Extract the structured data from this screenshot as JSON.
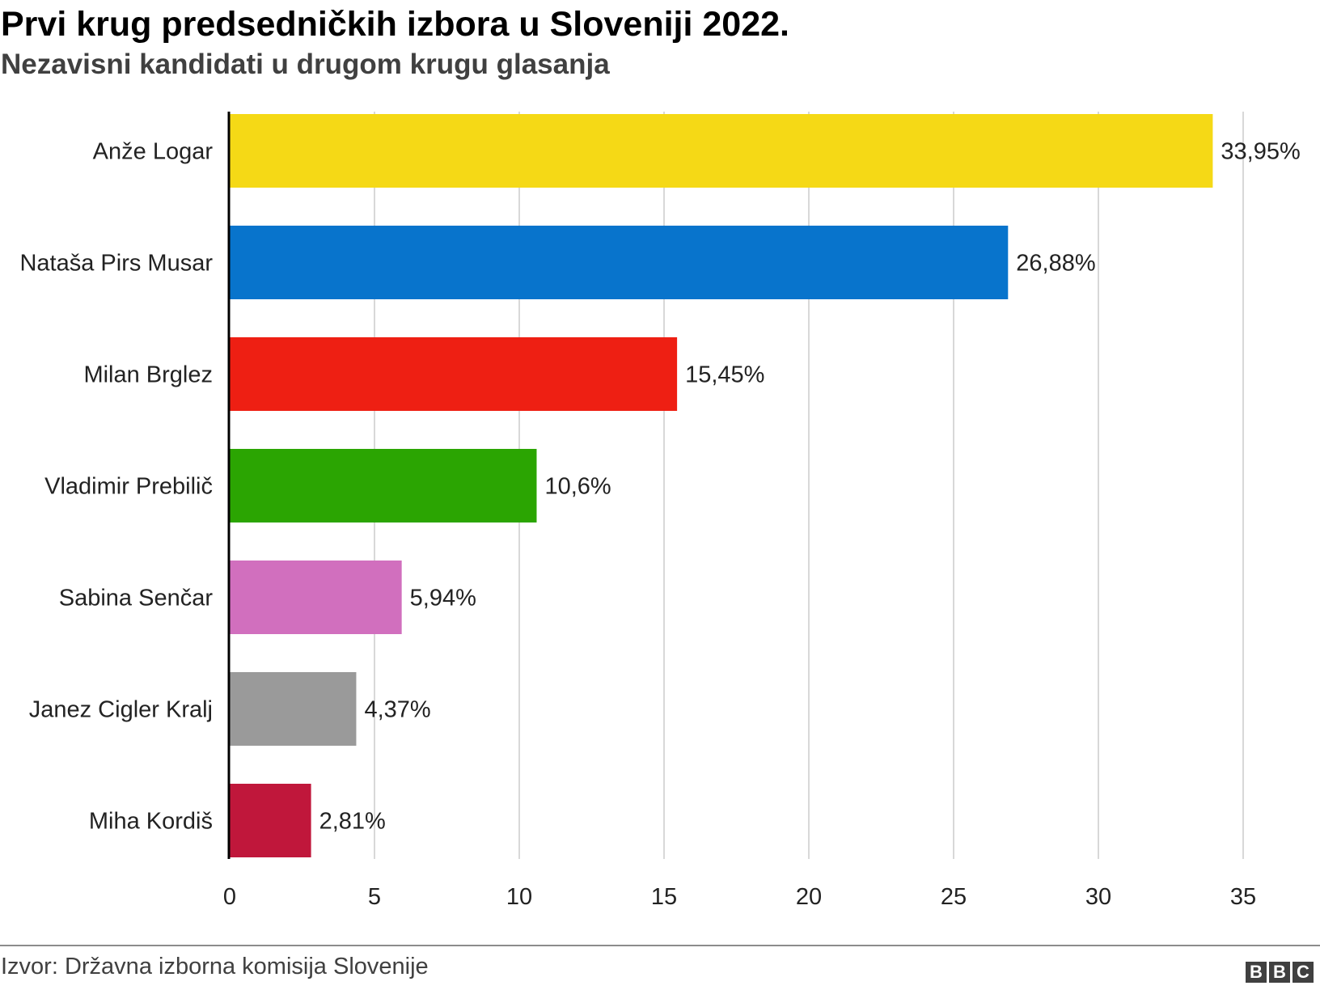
{
  "header": {
    "title": "Prvi krug predsedničkih izbora u Sloveniji 2022.",
    "subtitle": "Nezavisni kandidati u drugom krugu glasanja"
  },
  "footer": {
    "source": "Izvor: Državna izborna komisija Slovenije",
    "logo_letters": [
      "B",
      "B",
      "C"
    ]
  },
  "chart_data": {
    "type": "bar",
    "orientation": "horizontal",
    "title": "Prvi krug predsedničkih izbora u Sloveniji 2022.",
    "subtitle": "Nezavisni kandidati u drugom krugu glasanja",
    "categories": [
      "Anže Logar",
      "Nataša Pirs Musar",
      "Milan Brglez",
      "Vladimir Prebilič",
      "Sabina Senčar",
      "Janez Cigler Kralj",
      "Miha Kordiš"
    ],
    "values": [
      33.95,
      26.88,
      15.45,
      10.6,
      5.94,
      4.37,
      2.81
    ],
    "value_labels": [
      "33,95%",
      "26,88%",
      "15,45%",
      "10,6%",
      "5,94%",
      "4,37%",
      "2,81%"
    ],
    "colors": [
      "#f5d916",
      "#0874cc",
      "#ee1f13",
      "#2ba502",
      "#d16fbe",
      "#9a9a9a",
      "#c0173b"
    ],
    "xlim": [
      0,
      35
    ],
    "xticks": [
      0,
      5,
      10,
      15,
      20,
      25,
      30,
      35
    ],
    "xlabel": "",
    "ylabel": "",
    "grid": true,
    "legend": "none"
  }
}
